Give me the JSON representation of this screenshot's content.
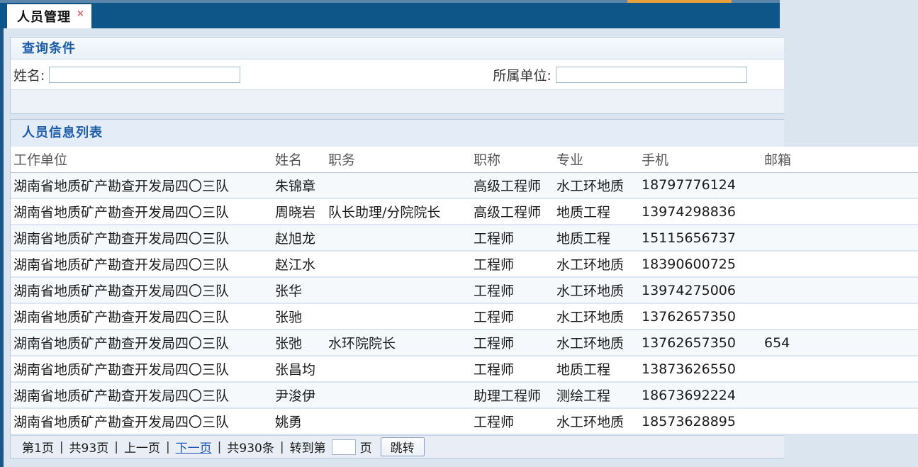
{
  "tab": {
    "label": "人员管理",
    "close": "×"
  },
  "query_panel": {
    "title": "查询条件",
    "fields": {
      "name": {
        "label": "姓名:",
        "value": ""
      },
      "unit": {
        "label": "所属单位:",
        "value": ""
      }
    }
  },
  "list_panel": {
    "title": "人员信息列表",
    "table": {
      "headers": [
        "工作单位",
        "姓名",
        "职务",
        "职称",
        "专业",
        "手机",
        "邮箱"
      ],
      "rows": [
        {
          "unit": "湖南省地质矿产勘查开发局四〇三队",
          "name": "朱锦章",
          "position": "",
          "title": "高级工程师",
          "major": "水工环地质",
          "phone": "18797776124",
          "email": ""
        },
        {
          "unit": "湖南省地质矿产勘查开发局四〇三队",
          "name": "周晓岩",
          "position": "队长助理/分院院长",
          "title": "高级工程师",
          "major": "地质工程",
          "phone": "13974298836",
          "email": ""
        },
        {
          "unit": "湖南省地质矿产勘查开发局四〇三队",
          "name": "赵旭龙",
          "position": "",
          "title": "工程师",
          "major": "地质工程",
          "phone": "15115656737",
          "email": ""
        },
        {
          "unit": "湖南省地质矿产勘查开发局四〇三队",
          "name": "赵江水",
          "position": "",
          "title": "工程师",
          "major": "水工环地质",
          "phone": "18390600725",
          "email": ""
        },
        {
          "unit": "湖南省地质矿产勘查开发局四〇三队",
          "name": "张华",
          "position": "",
          "title": "工程师",
          "major": "水工环地质",
          "phone": "13974275006",
          "email": ""
        },
        {
          "unit": "湖南省地质矿产勘查开发局四〇三队",
          "name": "张驰",
          "position": "",
          "title": "工程师",
          "major": "水工环地质",
          "phone": "13762657350",
          "email": ""
        },
        {
          "unit": "湖南省地质矿产勘查开发局四〇三队",
          "name": "张弛",
          "position": "水环院院长",
          "title": "工程师",
          "major": "水工环地质",
          "phone": "13762657350",
          "email": "654"
        },
        {
          "unit": "湖南省地质矿产勘查开发局四〇三队",
          "name": "张昌均",
          "position": "",
          "title": "工程师",
          "major": "地质工程",
          "phone": "13873626550",
          "email": ""
        },
        {
          "unit": "湖南省地质矿产勘查开发局四〇三队",
          "name": "尹浚伊",
          "position": "",
          "title": "助理工程师",
          "major": "测绘工程",
          "phone": "18673692224",
          "email": ""
        },
        {
          "unit": "湖南省地质矿产勘查开发局四〇三队",
          "name": "姚勇",
          "position": "",
          "title": "工程师",
          "major": "水工环地质",
          "phone": "18573628895",
          "email": ""
        }
      ]
    },
    "pagination": {
      "current_page": "第1页",
      "total_pages": "共93页",
      "prev_label": "上一页",
      "next_label": "下一页",
      "total_items": "共930条",
      "goto_prefix": "转到第",
      "goto_value": "",
      "goto_suffix": "页",
      "jump_label": "跳转",
      "separator": "|"
    }
  },
  "colors": {
    "tabbar_blue": "#0e5588",
    "accent_orange": "#e7a03c",
    "panel_title_blue": "#1d5ca8",
    "link_blue": "#1a57b0",
    "row_alt": "#f6f9fc",
    "row_border": "#dce6f2"
  }
}
